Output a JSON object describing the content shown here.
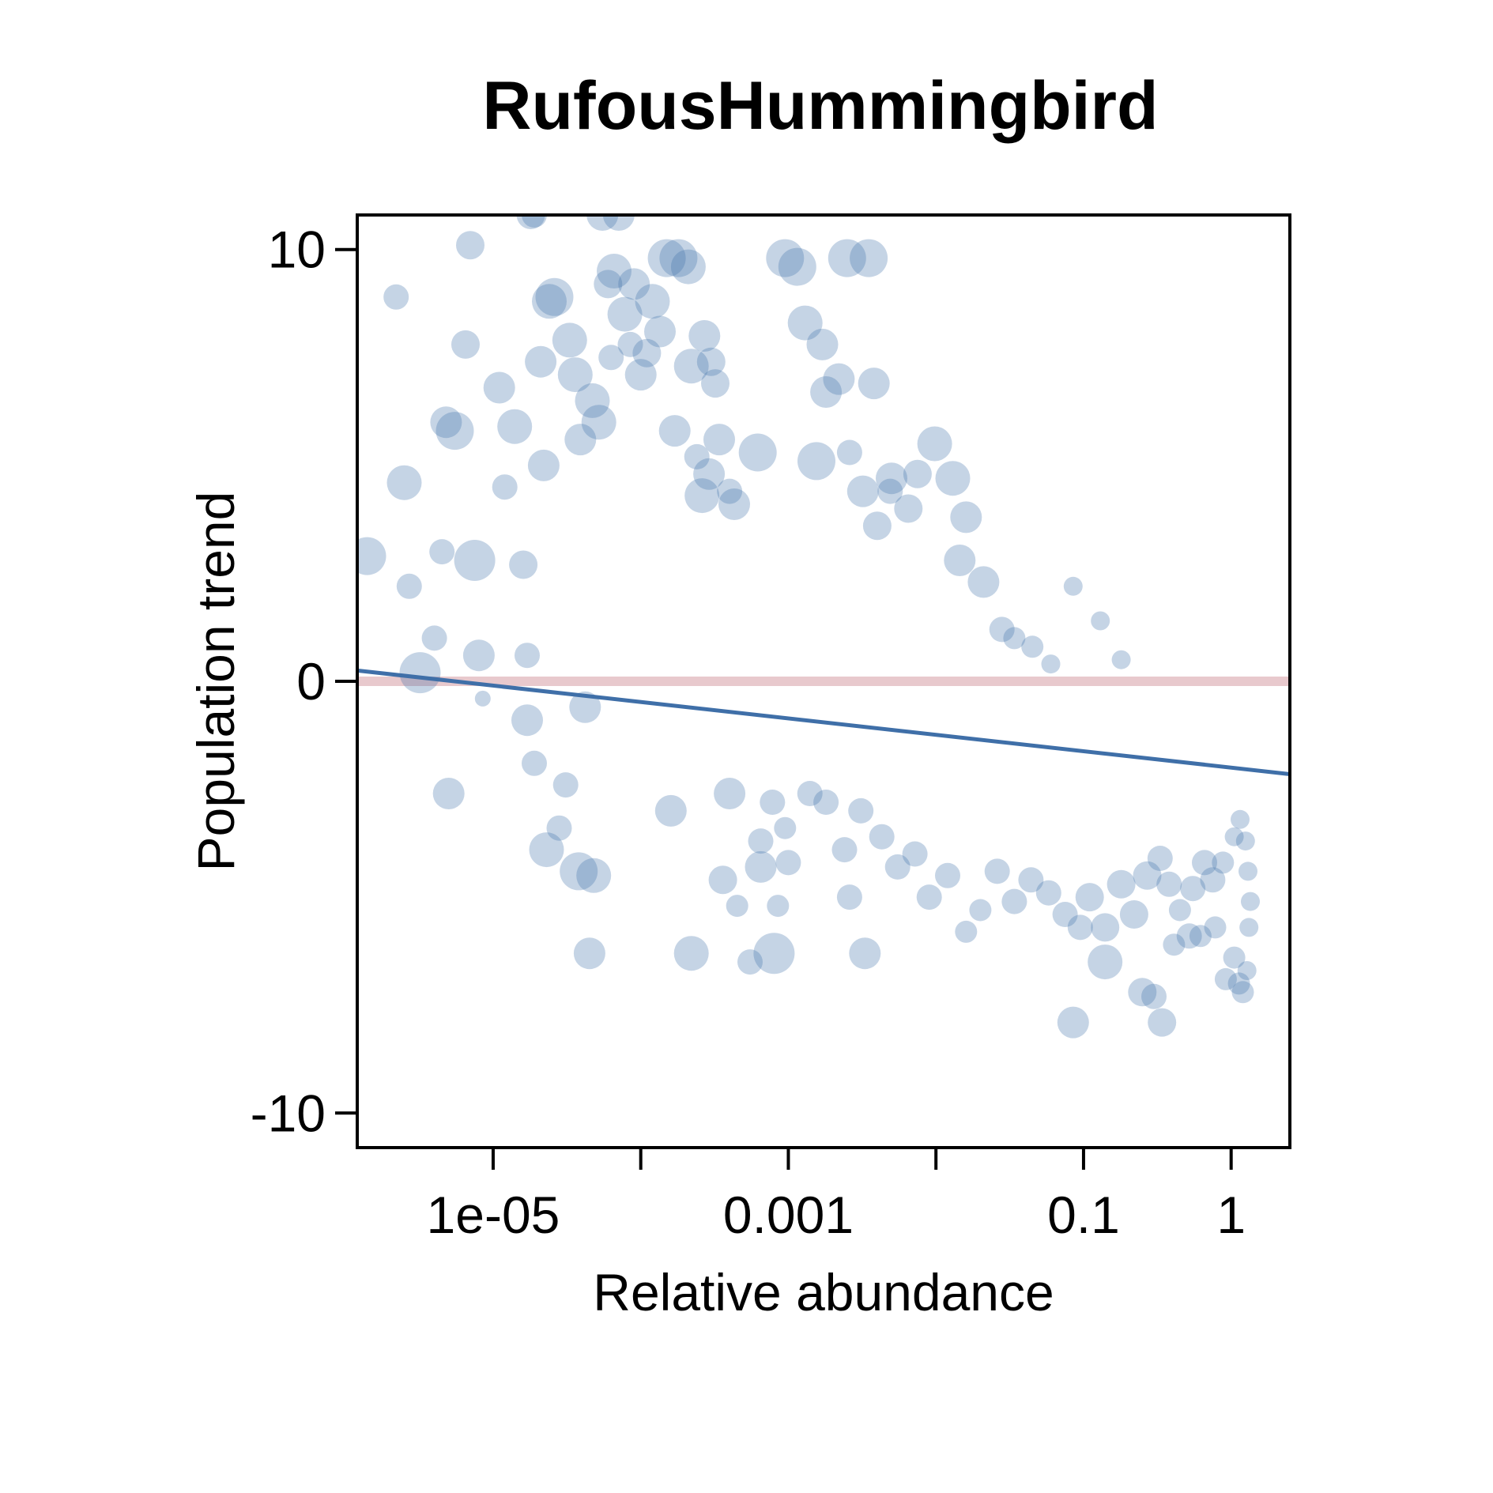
{
  "chart_data": {
    "type": "scatter",
    "title": "RufousHummingbird",
    "xlabel": "Relative abundance",
    "ylabel": "Population trend",
    "x_scale": "log10",
    "xlim": [
      1.2e-06,
      2.5
    ],
    "ylim": [
      -10.8,
      10.8
    ],
    "x_ticks": [
      1e-05,
      0.0001,
      0.001,
      0.01,
      0.1,
      1
    ],
    "x_tick_labels": [
      "1e-05",
      "",
      "0.001",
      "",
      "0.1",
      "1"
    ],
    "y_ticks": [
      10,
      0,
      -10
    ],
    "y_tick_labels": [
      "10",
      "0",
      "-10"
    ],
    "reference_line": {
      "y": 0,
      "color": "#e8c9cd"
    },
    "fit_line": {
      "x": [
        1.2e-06,
        2.5
      ],
      "y": [
        0.25,
        -2.15
      ],
      "color": "#3f6fa8"
    },
    "point_color": "#3f6fa8",
    "grid": false,
    "legend": "none",
    "points": [
      [
        1.4e-06,
        2.9,
        1.2
      ],
      [
        3.2e-06,
        0.2,
        1.3
      ],
      [
        2.5e-06,
        4.6,
        1.1
      ],
      [
        2.2e-06,
        8.9,
        0.8
      ],
      [
        2.7e-06,
        2.2,
        0.8
      ],
      [
        4e-06,
        1.0,
        0.8
      ],
      [
        5.5e-06,
        5.8,
        1.2
      ],
      [
        4.8e-06,
        6.0,
        1.0
      ],
      [
        6.5e-06,
        7.8,
        0.9
      ],
      [
        7e-06,
        10.1,
        0.9
      ],
      [
        4.5e-06,
        3.0,
        0.8
      ],
      [
        5e-06,
        -2.6,
        1.0
      ],
      [
        7.5e-06,
        2.8,
        1.3
      ],
      [
        8e-06,
        0.6,
        1.0
      ],
      [
        8.5e-06,
        -0.4,
        0.5
      ],
      [
        1.1e-05,
        6.8,
        1.0
      ],
      [
        1.2e-05,
        4.5,
        0.8
      ],
      [
        1.4e-05,
        5.9,
        1.1
      ],
      [
        1.6e-05,
        2.7,
        0.9
      ],
      [
        1.8e-05,
        10.8,
        0.9
      ],
      [
        1.9e-05,
        10.8,
        0.8
      ],
      [
        1.7e-05,
        0.6,
        0.8
      ],
      [
        1.7e-05,
        -0.9,
        1.0
      ],
      [
        1.9e-05,
        -1.9,
        0.8
      ],
      [
        2.1e-05,
        7.4,
        1.0
      ],
      [
        2.2e-05,
        5.0,
        1.0
      ],
      [
        2.4e-05,
        8.8,
        1.1
      ],
      [
        2.6e-05,
        8.9,
        1.2
      ],
      [
        2.3e-05,
        -3.9,
        1.1
      ],
      [
        2.8e-05,
        -3.4,
        0.8
      ],
      [
        3.1e-05,
        -2.4,
        0.8
      ],
      [
        3.3e-05,
        7.9,
        1.1
      ],
      [
        3.6e-05,
        7.1,
        1.1
      ],
      [
        3.9e-05,
        5.6,
        1.0
      ],
      [
        4.2e-05,
        -0.6,
        1.0
      ],
      [
        3.8e-05,
        -4.4,
        1.2
      ],
      [
        4.8e-05,
        -4.5,
        1.1
      ],
      [
        4.5e-05,
        -6.3,
        1.0
      ],
      [
        4.7e-05,
        6.5,
        1.1
      ],
      [
        5.2e-05,
        6.0,
        1.1
      ],
      [
        5.5e-05,
        10.8,
        1.0
      ],
      [
        6e-05,
        9.2,
        0.9
      ],
      [
        6.6e-05,
        9.5,
        1.1
      ],
      [
        7.1e-05,
        10.8,
        1.0
      ],
      [
        6.3e-05,
        7.5,
        0.8
      ],
      [
        7.8e-05,
        8.5,
        1.1
      ],
      [
        8.5e-05,
        7.8,
        0.8
      ],
      [
        9e-05,
        9.2,
        1.0
      ],
      [
        0.0001,
        7.1,
        1.0
      ],
      [
        0.00011,
        7.6,
        0.9
      ],
      [
        0.00012,
        8.8,
        1.1
      ],
      [
        0.000135,
        8.1,
        1.0
      ],
      [
        0.00015,
        9.8,
        1.2
      ],
      [
        0.00018,
        9.8,
        1.2
      ],
      [
        0.00021,
        9.6,
        1.1
      ],
      [
        0.00017,
        5.8,
        1.0
      ],
      [
        0.00022,
        7.3,
        1.1
      ],
      [
        0.00027,
        8.0,
        1.0
      ],
      [
        0.0003,
        7.4,
        0.9
      ],
      [
        0.00032,
        6.9,
        0.9
      ],
      [
        0.00024,
        5.2,
        0.8
      ],
      [
        0.00026,
        4.3,
        1.1
      ],
      [
        0.00029,
        4.8,
        1.0
      ],
      [
        0.00034,
        5.6,
        1.0
      ],
      [
        0.0004,
        4.4,
        0.8
      ],
      [
        0.00036,
        -4.6,
        0.9
      ],
      [
        0.00022,
        -6.3,
        1.1
      ],
      [
        0.00016,
        -3.0,
        1.0
      ],
      [
        0.00045,
        -5.2,
        0.7
      ],
      [
        0.00055,
        -6.5,
        0.8
      ],
      [
        0.00062,
        5.3,
        1.2
      ],
      [
        0.00043,
        4.1,
        1.0
      ],
      [
        0.0008,
        -6.3,
        1.3
      ],
      [
        0.00065,
        -4.3,
        1.0
      ],
      [
        0.00085,
        -5.2,
        0.7
      ],
      [
        0.00095,
        9.8,
        1.2
      ],
      [
        0.00115,
        9.6,
        1.2
      ],
      [
        0.0013,
        8.3,
        1.1
      ],
      [
        0.00155,
        5.1,
        1.2
      ],
      [
        0.0017,
        7.8,
        1.0
      ],
      [
        0.0025,
        9.8,
        1.2
      ],
      [
        0.0035,
        9.8,
        1.2
      ],
      [
        0.0018,
        6.7,
        1.0
      ],
      [
        0.0022,
        7.0,
        1.0
      ],
      [
        0.0026,
        5.3,
        0.8
      ],
      [
        0.0032,
        4.4,
        1.0
      ],
      [
        0.004,
        3.6,
        0.9
      ],
      [
        0.005,
        4.7,
        1.0
      ],
      [
        0.0038,
        6.9,
        1.0
      ],
      [
        0.0049,
        4.4,
        0.8
      ],
      [
        0.0065,
        4.0,
        0.9
      ],
      [
        0.0075,
        4.8,
        0.9
      ],
      [
        0.0098,
        5.5,
        1.1
      ],
      [
        0.013,
        4.7,
        1.1
      ],
      [
        0.016,
        3.8,
        1.0
      ],
      [
        0.0145,
        2.8,
        1.0
      ],
      [
        0.021,
        2.3,
        1.0
      ],
      [
        0.028,
        1.2,
        0.8
      ],
      [
        0.034,
        1.0,
        0.7
      ],
      [
        0.045,
        0.8,
        0.7
      ],
      [
        0.06,
        0.4,
        0.6
      ],
      [
        0.085,
        2.2,
        0.6
      ],
      [
        0.13,
        1.4,
        0.6
      ],
      [
        0.18,
        0.5,
        0.6
      ],
      [
        0.0033,
        -6.3,
        1.0
      ],
      [
        0.0026,
        -5.0,
        0.8
      ],
      [
        0.001,
        -4.2,
        0.8
      ],
      [
        0.00095,
        -3.4,
        0.7
      ],
      [
        0.00078,
        -2.8,
        0.8
      ],
      [
        0.00065,
        -3.7,
        0.8
      ],
      [
        0.0004,
        -2.6,
        1.0
      ],
      [
        0.085,
        -7.9,
        1.0
      ],
      [
        0.14,
        -6.5,
        1.1
      ],
      [
        0.25,
        -7.2,
        0.9
      ],
      [
        0.34,
        -7.9,
        0.9
      ],
      [
        0.3,
        -7.3,
        0.8
      ],
      [
        0.41,
        -6.1,
        0.7
      ],
      [
        0.52,
        -5.9,
        0.8
      ],
      [
        0.62,
        -5.9,
        0.7
      ],
      [
        0.78,
        -5.7,
        0.7
      ],
      [
        0.92,
        -6.9,
        0.7
      ],
      [
        1.05,
        -6.4,
        0.7
      ],
      [
        1.13,
        -7.0,
        0.7
      ],
      [
        1.2,
        -7.2,
        0.7
      ],
      [
        1.28,
        -6.7,
        0.6
      ],
      [
        1.32,
        -5.7,
        0.6
      ],
      [
        1.35,
        -5.1,
        0.6
      ],
      [
        1.3,
        -4.4,
        0.6
      ],
      [
        1.25,
        -3.7,
        0.6
      ],
      [
        1.15,
        -3.2,
        0.6
      ],
      [
        1.05,
        -3.6,
        0.6
      ],
      [
        0.88,
        -4.2,
        0.7
      ],
      [
        0.75,
        -4.6,
        0.8
      ],
      [
        0.66,
        -4.2,
        0.8
      ],
      [
        0.55,
        -4.8,
        0.8
      ],
      [
        0.45,
        -5.3,
        0.7
      ],
      [
        0.38,
        -4.7,
        0.8
      ],
      [
        0.33,
        -4.1,
        0.8
      ],
      [
        0.27,
        -4.5,
        0.9
      ],
      [
        0.22,
        -5.4,
        0.9
      ],
      [
        0.18,
        -4.7,
        0.9
      ],
      [
        0.14,
        -5.7,
        0.9
      ],
      [
        0.11,
        -5.0,
        0.9
      ],
      [
        0.095,
        -5.7,
        0.8
      ],
      [
        0.075,
        -5.4,
        0.8
      ],
      [
        0.058,
        -4.9,
        0.8
      ],
      [
        0.044,
        -4.6,
        0.8
      ],
      [
        0.034,
        -5.1,
        0.8
      ],
      [
        0.026,
        -4.4,
        0.8
      ],
      [
        0.02,
        -5.3,
        0.7
      ],
      [
        0.016,
        -5.8,
        0.7
      ],
      [
        0.012,
        -4.5,
        0.8
      ],
      [
        0.009,
        -5.0,
        0.8
      ],
      [
        0.0072,
        -4.0,
        0.8
      ],
      [
        0.0055,
        -4.3,
        0.8
      ],
      [
        0.0043,
        -3.6,
        0.8
      ],
      [
        0.0031,
        -3.0,
        0.8
      ],
      [
        0.0024,
        -3.9,
        0.8
      ],
      [
        0.0018,
        -2.8,
        0.8
      ],
      [
        0.0014,
        -2.6,
        0.8
      ]
    ]
  }
}
